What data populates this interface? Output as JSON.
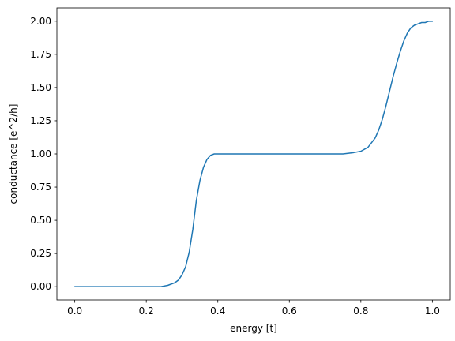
{
  "chart_data": {
    "type": "line",
    "title": "",
    "xlabel": "energy [t]",
    "ylabel": "conductance [e^2/h]",
    "xlim": [
      -0.05,
      1.05
    ],
    "ylim": [
      -0.1,
      2.1
    ],
    "xticks": [
      {
        "value": 0.0,
        "label": "0.0"
      },
      {
        "value": 0.2,
        "label": "0.2"
      },
      {
        "value": 0.4,
        "label": "0.4"
      },
      {
        "value": 0.6,
        "label": "0.6"
      },
      {
        "value": 0.8,
        "label": "0.8"
      },
      {
        "value": 1.0,
        "label": "1.0"
      }
    ],
    "yticks": [
      {
        "value": 0.0,
        "label": "0.00"
      },
      {
        "value": 0.25,
        "label": "0.25"
      },
      {
        "value": 0.5,
        "label": "0.50"
      },
      {
        "value": 0.75,
        "label": "0.75"
      },
      {
        "value": 1.0,
        "label": "1.00"
      },
      {
        "value": 1.25,
        "label": "1.25"
      },
      {
        "value": 1.5,
        "label": "1.50"
      },
      {
        "value": 1.75,
        "label": "1.75"
      },
      {
        "value": 2.0,
        "label": "2.00"
      }
    ],
    "grid": false,
    "series": [
      {
        "color": "#1f77b4",
        "x": [
          0.0,
          0.05,
          0.1,
          0.15,
          0.2,
          0.24,
          0.26,
          0.28,
          0.29,
          0.3,
          0.31,
          0.32,
          0.33,
          0.34,
          0.35,
          0.36,
          0.37,
          0.38,
          0.39,
          0.4,
          0.45,
          0.5,
          0.55,
          0.6,
          0.65,
          0.7,
          0.75,
          0.78,
          0.8,
          0.82,
          0.84,
          0.85,
          0.86,
          0.87,
          0.88,
          0.89,
          0.9,
          0.91,
          0.92,
          0.93,
          0.94,
          0.95,
          0.96,
          0.97,
          0.98,
          0.99,
          1.0
        ],
        "y": [
          0.0,
          0.0,
          0.0,
          0.0,
          0.0,
          0.0,
          0.01,
          0.03,
          0.05,
          0.09,
          0.15,
          0.26,
          0.43,
          0.65,
          0.8,
          0.9,
          0.96,
          0.99,
          1.0,
          1.0,
          1.0,
          1.0,
          1.0,
          1.0,
          1.0,
          1.0,
          1.0,
          1.01,
          1.02,
          1.05,
          1.12,
          1.18,
          1.26,
          1.36,
          1.47,
          1.58,
          1.68,
          1.77,
          1.85,
          1.91,
          1.95,
          1.97,
          1.98,
          1.99,
          1.99,
          2.0,
          2.0
        ]
      }
    ]
  }
}
